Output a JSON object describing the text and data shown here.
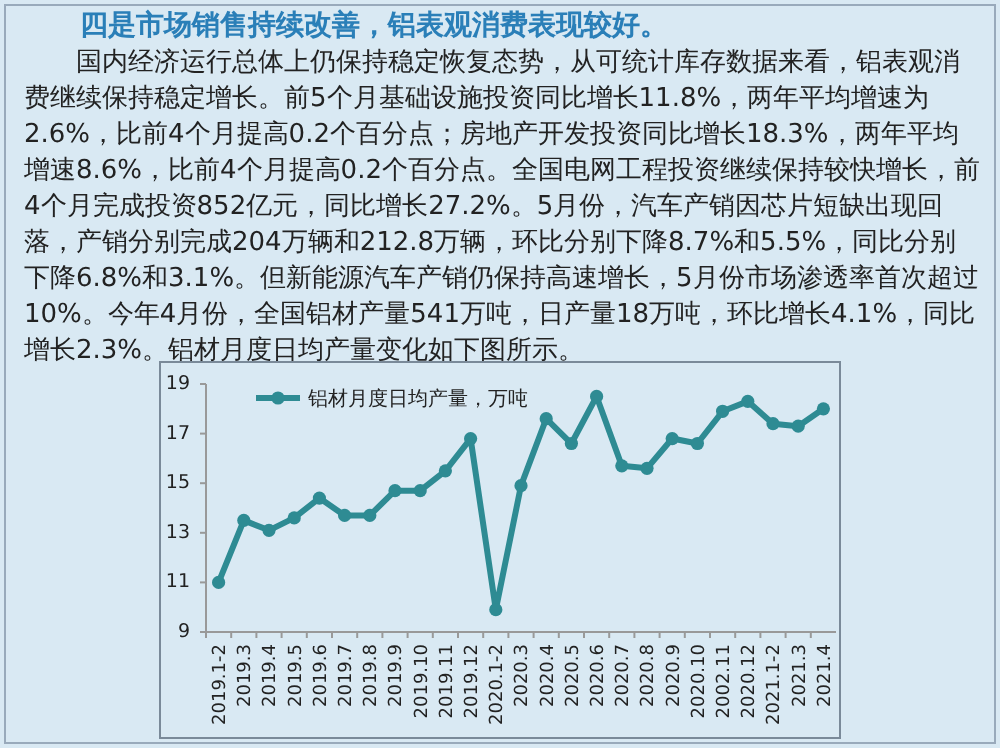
{
  "chart_data": {
    "type": "line",
    "title": "四是市场销售持续改善，铝表观消费表现较好。",
    "annotations": [
      "国内经济运行总体上仍保持稳定恢复态势，从可统计库存数据来看，铝表观消费继续保持稳定增长。前5个月基础设施投资同比增长11.8%，两年平均增速为2.6%，比前4个月提高0.2个百分点；房地产开发投资同比增长18.3%，两年平均增速8.6%，比前4个月提高0.2个百分点。全国电网工程投资继续保持较快增长，前4个月完成投资852亿元，同比增长27.2%。5月份，汽车产销因芯片短缺出现回落，产销分别完成204万辆和212.8万辆，环比分别下降8.7%和5.5%，同比分别下降6.8%和3.1%。但新能源汽车产销仍保持高速增长，5月份市场渗透率首次超过10%。今年4月份，全国铝材产量541万吨，日产量18万吨，环比增长4.1%，同比增长2.3%。铝材月度日均产量变化如下图所示。"
    ],
    "categories": [
      "2019.1-2",
      "2019.3",
      "2019.4",
      "2019.5",
      "2019.6",
      "2019.7",
      "2019.8",
      "2019.9",
      "2019.10",
      "2019.11",
      "2019.12",
      "2020.1-2",
      "2020.3",
      "2020.4",
      "2020.5",
      "2020.6",
      "2020.7",
      "2020.8",
      "2020.9",
      "2020.10",
      "2002.11",
      "2020.12",
      "2021.1-2",
      "2021.3",
      "2021.4"
    ],
    "series": [
      {
        "name": "铝材月度日均产量，万吨",
        "color": "#2e8b93",
        "values": [
          11.0,
          13.5,
          13.1,
          13.6,
          14.4,
          13.7,
          13.7,
          14.7,
          14.7,
          15.5,
          16.8,
          9.9,
          14.9,
          17.6,
          16.6,
          18.5,
          15.7,
          15.6,
          16.8,
          16.6,
          17.9,
          18.3,
          17.4,
          17.3,
          18.0
        ]
      }
    ],
    "ylim": [
      9,
      19
    ],
    "yticks": [
      9,
      11,
      13,
      15,
      17,
      19
    ],
    "legend": "top left",
    "marker": "circle",
    "grid": false
  }
}
